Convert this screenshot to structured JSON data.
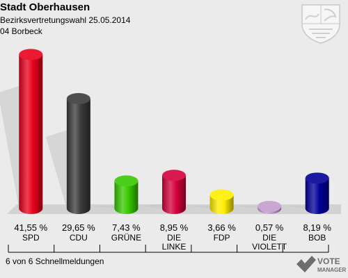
{
  "header": {
    "title": "Stadt Oberhausen",
    "subtitle": "Bezirksvertretungswahl 25.05.2014",
    "district": "04 Borbeck"
  },
  "footer": {
    "status": "6 von 6 Schnellmeldungen"
  },
  "logo": {
    "line1": "VOTE",
    "line2": "MANAGER"
  },
  "crest_icon": "nrw-crest-icon",
  "chart_data": {
    "type": "bar",
    "categories": [
      "SPD",
      "CDU",
      "GRÜNE",
      "DIE LINKE",
      "FDP",
      "DIE VIOLETTEN",
      "BOB"
    ],
    "category_labels": [
      [
        "SPD"
      ],
      [
        "CDU"
      ],
      [
        "GRÜNE"
      ],
      [
        "DIE",
        "LINKE"
      ],
      [
        "FDP"
      ],
      [
        "DIE",
        "VIOLETT"
      ],
      [
        "BOB"
      ]
    ],
    "values": [
      41.55,
      29.65,
      7.43,
      8.95,
      3.66,
      0.57,
      8.19
    ],
    "value_labels": [
      "41,55 %",
      "29,65 %",
      "7,43 %",
      "8,95 %",
      "3,66 %",
      "0,57 %",
      "8,19 %"
    ],
    "colors": [
      "#e8001c",
      "#3a3a3a",
      "#37c800",
      "#d4003c",
      "#ffee00",
      "#c49cd0",
      "#000099"
    ],
    "ylim": [
      0,
      45
    ],
    "grid": false,
    "legend": "none"
  }
}
